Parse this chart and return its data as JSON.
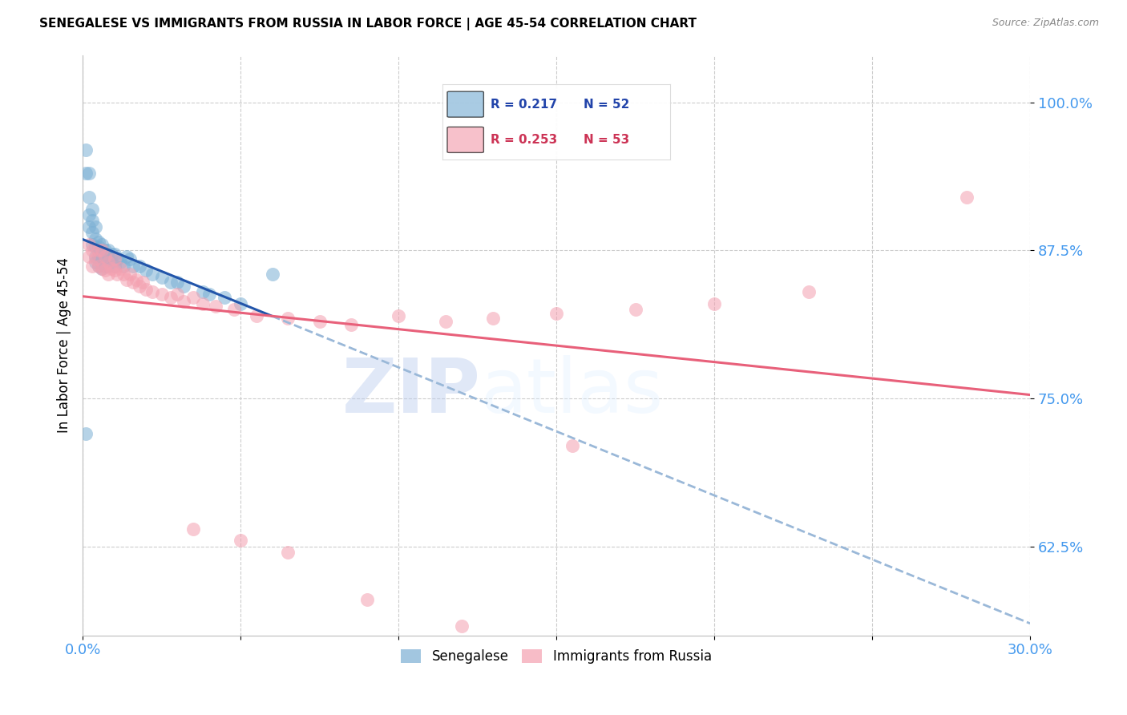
{
  "title": "SENEGALESE VS IMMIGRANTS FROM RUSSIA IN LABOR FORCE | AGE 45-54 CORRELATION CHART",
  "source": "Source: ZipAtlas.com",
  "ylabel": "In Labor Force | Age 45-54",
  "xlim": [
    0.0,
    0.3
  ],
  "ylim": [
    0.55,
    1.04
  ],
  "xticks": [
    0.0,
    0.05,
    0.1,
    0.15,
    0.2,
    0.25,
    0.3
  ],
  "xticklabels": [
    "0.0%",
    "",
    "",
    "",
    "",
    "",
    "30.0%"
  ],
  "yticks": [
    0.625,
    0.75,
    0.875,
    1.0
  ],
  "yticklabels": [
    "62.5%",
    "75.0%",
    "87.5%",
    "100.0%"
  ],
  "blue_color": "#7BAFD4",
  "pink_color": "#F4A0B0",
  "trend_blue_solid": "#2255AA",
  "trend_blue_dash": "#9AB8D8",
  "trend_pink": "#E8607A",
  "legend_r_blue": "0.217",
  "legend_n_blue": "52",
  "legend_r_pink": "0.253",
  "legend_n_pink": "53",
  "watermark_zip": "ZIP",
  "watermark_atlas": "atlas",
  "blue_points_x": [
    0.001,
    0.001,
    0.002,
    0.002,
    0.002,
    0.002,
    0.003,
    0.003,
    0.003,
    0.003,
    0.004,
    0.004,
    0.004,
    0.004,
    0.004,
    0.005,
    0.005,
    0.005,
    0.005,
    0.006,
    0.006,
    0.006,
    0.006,
    0.007,
    0.007,
    0.007,
    0.008,
    0.008,
    0.008,
    0.009,
    0.009,
    0.01,
    0.01,
    0.011,
    0.012,
    0.013,
    0.014,
    0.015,
    0.016,
    0.018,
    0.02,
    0.022,
    0.025,
    0.028,
    0.03,
    0.032,
    0.038,
    0.04,
    0.045,
    0.05,
    0.001,
    0.06
  ],
  "blue_points_y": [
    0.96,
    0.94,
    0.94,
    0.92,
    0.905,
    0.895,
    0.91,
    0.9,
    0.89,
    0.88,
    0.895,
    0.885,
    0.878,
    0.87,
    0.865,
    0.882,
    0.878,
    0.87,
    0.862,
    0.88,
    0.875,
    0.87,
    0.86,
    0.875,
    0.868,
    0.862,
    0.875,
    0.87,
    0.862,
    0.872,
    0.865,
    0.872,
    0.862,
    0.868,
    0.865,
    0.862,
    0.87,
    0.868,
    0.862,
    0.862,
    0.858,
    0.855,
    0.852,
    0.848,
    0.848,
    0.845,
    0.84,
    0.838,
    0.835,
    0.83,
    0.72,
    0.855
  ],
  "pink_points_x": [
    0.002,
    0.002,
    0.003,
    0.003,
    0.004,
    0.005,
    0.005,
    0.006,
    0.006,
    0.007,
    0.007,
    0.008,
    0.008,
    0.009,
    0.01,
    0.01,
    0.011,
    0.012,
    0.013,
    0.014,
    0.015,
    0.016,
    0.017,
    0.018,
    0.019,
    0.02,
    0.022,
    0.025,
    0.028,
    0.03,
    0.032,
    0.035,
    0.038,
    0.042,
    0.048,
    0.055,
    0.065,
    0.075,
    0.085,
    0.1,
    0.115,
    0.13,
    0.15,
    0.175,
    0.2,
    0.23,
    0.28,
    0.155,
    0.035,
    0.05,
    0.065,
    0.09,
    0.12
  ],
  "pink_points_y": [
    0.88,
    0.87,
    0.875,
    0.862,
    0.868,
    0.875,
    0.862,
    0.875,
    0.86,
    0.87,
    0.858,
    0.865,
    0.855,
    0.86,
    0.858,
    0.868,
    0.855,
    0.86,
    0.855,
    0.85,
    0.855,
    0.848,
    0.85,
    0.845,
    0.848,
    0.842,
    0.84,
    0.838,
    0.835,
    0.838,
    0.832,
    0.835,
    0.83,
    0.828,
    0.825,
    0.82,
    0.818,
    0.815,
    0.812,
    0.82,
    0.815,
    0.818,
    0.822,
    0.825,
    0.83,
    0.84,
    0.92,
    0.71,
    0.64,
    0.63,
    0.62,
    0.58,
    0.558
  ]
}
